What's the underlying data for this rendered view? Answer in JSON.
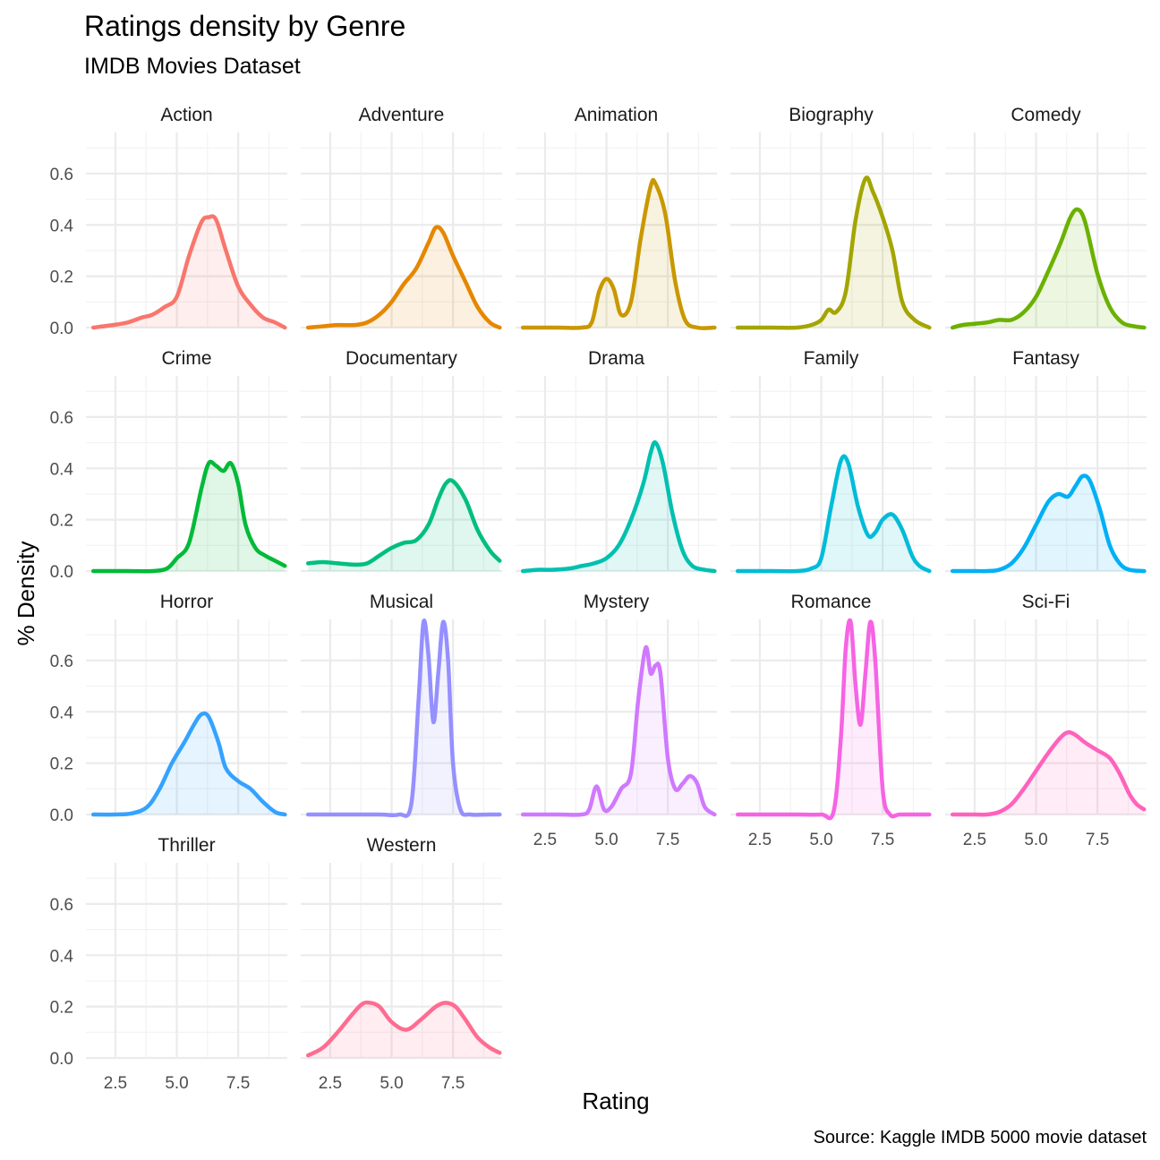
{
  "chart_data": {
    "type": "area",
    "title": "Ratings density by Genre",
    "subtitle": "IMDB Movies Dataset",
    "xlabel": "Rating",
    "ylabel": "% Density",
    "caption": "Source: Kaggle IMDB 5000 movie dataset",
    "xlim": [
      1.3,
      9.5
    ],
    "ylim": [
      0,
      0.76
    ],
    "x_ticks": [
      2.5,
      5.0,
      7.5
    ],
    "x_tick_labels": [
      "2.5",
      "5.0",
      "7.5"
    ],
    "y_ticks": [
      0.0,
      0.2,
      0.4,
      0.6
    ],
    "y_tick_labels": [
      "0.0",
      "0.2",
      "0.4",
      "0.6"
    ],
    "grid": true,
    "legend": "none",
    "facets": [
      {
        "name": "Action",
        "color": "#F8766D",
        "x": [
          1.6,
          2.4,
          3.0,
          3.6,
          4.0,
          4.5,
          5.0,
          5.5,
          6.0,
          6.3,
          6.6,
          7.0,
          7.5,
          8.0,
          8.5,
          9.0,
          9.4
        ],
        "y": [
          0.0,
          0.01,
          0.02,
          0.04,
          0.05,
          0.08,
          0.12,
          0.28,
          0.41,
          0.43,
          0.42,
          0.3,
          0.16,
          0.09,
          0.04,
          0.02,
          0.0
        ]
      },
      {
        "name": "Adventure",
        "color": "#E58700",
        "x": [
          1.6,
          2.2,
          2.8,
          3.5,
          4.0,
          4.5,
          5.0,
          5.5,
          6.0,
          6.5,
          6.8,
          7.1,
          7.5,
          8.0,
          8.5,
          9.0,
          9.4
        ],
        "y": [
          0.0,
          0.005,
          0.01,
          0.01,
          0.02,
          0.05,
          0.1,
          0.17,
          0.23,
          0.33,
          0.39,
          0.37,
          0.28,
          0.18,
          0.08,
          0.02,
          0.0
        ]
      },
      {
        "name": "Animation",
        "color": "#C99800",
        "x": [
          1.6,
          3.0,
          4.0,
          4.4,
          4.7,
          5.0,
          5.3,
          5.6,
          6.0,
          6.4,
          6.8,
          7.0,
          7.4,
          7.8,
          8.2,
          8.7,
          9.4
        ],
        "y": [
          0.0,
          0.0,
          0.0,
          0.02,
          0.14,
          0.19,
          0.15,
          0.05,
          0.1,
          0.35,
          0.55,
          0.56,
          0.44,
          0.18,
          0.03,
          0.0,
          0.0
        ]
      },
      {
        "name": "Biography",
        "color": "#A3A500",
        "x": [
          1.6,
          3.0,
          4.0,
          4.6,
          5.0,
          5.3,
          5.6,
          6.0,
          6.4,
          6.8,
          7.1,
          7.5,
          7.9,
          8.3,
          8.8,
          9.4
        ],
        "y": [
          0.0,
          0.0,
          0.0,
          0.01,
          0.03,
          0.07,
          0.06,
          0.14,
          0.42,
          0.58,
          0.53,
          0.43,
          0.3,
          0.1,
          0.03,
          0.0
        ]
      },
      {
        "name": "Comedy",
        "color": "#6BB100",
        "x": [
          1.6,
          2.0,
          2.5,
          3.0,
          3.5,
          4.0,
          4.5,
          5.0,
          5.5,
          6.0,
          6.4,
          6.7,
          7.0,
          7.5,
          8.0,
          8.5,
          9.0,
          9.4
        ],
        "y": [
          0.0,
          0.01,
          0.015,
          0.02,
          0.03,
          0.03,
          0.06,
          0.12,
          0.22,
          0.33,
          0.43,
          0.46,
          0.41,
          0.21,
          0.08,
          0.02,
          0.005,
          0.0
        ]
      },
      {
        "name": "Crime",
        "color": "#00BA38",
        "x": [
          1.6,
          3.0,
          4.0,
          4.6,
          5.0,
          5.5,
          6.0,
          6.3,
          6.6,
          6.9,
          7.2,
          7.5,
          7.8,
          8.2,
          8.6,
          9.0,
          9.4
        ],
        "y": [
          0.0,
          0.0,
          0.0,
          0.01,
          0.05,
          0.11,
          0.32,
          0.42,
          0.41,
          0.39,
          0.42,
          0.34,
          0.18,
          0.09,
          0.06,
          0.04,
          0.02
        ]
      },
      {
        "name": "Documentary",
        "color": "#00BF7D",
        "x": [
          1.6,
          2.2,
          2.8,
          3.5,
          4.0,
          4.5,
          5.0,
          5.5,
          6.0,
          6.5,
          6.9,
          7.2,
          7.5,
          8.0,
          8.5,
          9.0,
          9.4
        ],
        "y": [
          0.03,
          0.035,
          0.03,
          0.025,
          0.03,
          0.06,
          0.09,
          0.11,
          0.12,
          0.18,
          0.28,
          0.34,
          0.35,
          0.28,
          0.16,
          0.08,
          0.04
        ]
      },
      {
        "name": "Drama",
        "color": "#00C0AF",
        "x": [
          1.6,
          2.2,
          2.8,
          3.5,
          4.0,
          4.5,
          5.0,
          5.5,
          6.0,
          6.5,
          6.8,
          7.0,
          7.3,
          7.7,
          8.1,
          8.5,
          9.0,
          9.4
        ],
        "y": [
          0.0,
          0.005,
          0.005,
          0.01,
          0.02,
          0.03,
          0.05,
          0.1,
          0.2,
          0.34,
          0.46,
          0.5,
          0.42,
          0.22,
          0.08,
          0.02,
          0.005,
          0.0
        ]
      },
      {
        "name": "Family",
        "color": "#00BCD8",
        "x": [
          1.6,
          3.0,
          4.0,
          4.6,
          5.0,
          5.4,
          5.8,
          6.1,
          6.5,
          6.9,
          7.2,
          7.5,
          7.9,
          8.3,
          8.7,
          9.0,
          9.4
        ],
        "y": [
          0.0,
          0.0,
          0.0,
          0.01,
          0.05,
          0.25,
          0.43,
          0.42,
          0.25,
          0.14,
          0.15,
          0.2,
          0.22,
          0.16,
          0.06,
          0.02,
          0.0
        ]
      },
      {
        "name": "Fantasy",
        "color": "#00B0F6",
        "x": [
          1.6,
          2.5,
          3.0,
          3.5,
          4.0,
          4.5,
          5.0,
          5.5,
          5.9,
          6.3,
          6.6,
          6.9,
          7.2,
          7.6,
          8.0,
          8.4,
          8.8,
          9.4
        ],
        "y": [
          0.0,
          0.0,
          0.0,
          0.005,
          0.03,
          0.09,
          0.18,
          0.27,
          0.3,
          0.29,
          0.33,
          0.37,
          0.35,
          0.24,
          0.1,
          0.03,
          0.005,
          0.0
        ]
      },
      {
        "name": "Horror",
        "color": "#35A2FF",
        "x": [
          1.6,
          2.5,
          3.2,
          3.8,
          4.3,
          4.8,
          5.3,
          5.7,
          6.0,
          6.3,
          6.7,
          7.0,
          7.5,
          8.0,
          8.5,
          9.0,
          9.4
        ],
        "y": [
          0.0,
          0.0,
          0.005,
          0.03,
          0.1,
          0.2,
          0.28,
          0.35,
          0.39,
          0.38,
          0.28,
          0.18,
          0.13,
          0.1,
          0.05,
          0.01,
          0.0
        ]
      },
      {
        "name": "Musical",
        "color": "#9590FF",
        "x": [
          1.6,
          3.0,
          4.5,
          5.3,
          5.8,
          6.1,
          6.3,
          6.5,
          6.7,
          6.9,
          7.1,
          7.3,
          7.5,
          7.8,
          8.2,
          9.0,
          9.4
        ],
        "y": [
          0.0,
          0.0,
          0.0,
          0.0,
          0.04,
          0.45,
          0.75,
          0.62,
          0.36,
          0.55,
          0.75,
          0.6,
          0.2,
          0.02,
          0.0,
          0.0,
          0.0
        ]
      },
      {
        "name": "Mystery",
        "color": "#D078FF",
        "x": [
          1.6,
          3.0,
          4.0,
          4.3,
          4.6,
          4.9,
          5.2,
          5.6,
          6.0,
          6.3,
          6.6,
          6.8,
          7.0,
          7.2,
          7.5,
          7.8,
          8.1,
          8.4,
          8.7,
          9.0,
          9.4
        ],
        "y": [
          0.0,
          0.0,
          0.0,
          0.02,
          0.11,
          0.02,
          0.03,
          0.1,
          0.16,
          0.45,
          0.65,
          0.55,
          0.58,
          0.55,
          0.22,
          0.1,
          0.12,
          0.15,
          0.12,
          0.03,
          0.0
        ]
      },
      {
        "name": "Romance",
        "color": "#F663E3",
        "x": [
          1.6,
          3.0,
          4.0,
          5.0,
          5.5,
          5.8,
          6.0,
          6.2,
          6.4,
          6.6,
          6.8,
          7.0,
          7.2,
          7.5,
          7.8,
          8.2,
          9.0,
          9.4
        ],
        "y": [
          0.0,
          0.0,
          0.0,
          0.0,
          0.01,
          0.3,
          0.65,
          0.75,
          0.5,
          0.35,
          0.55,
          0.75,
          0.6,
          0.1,
          0.0,
          0.0,
          0.0,
          0.0
        ]
      },
      {
        "name": "Sci-Fi",
        "color": "#FF62BC",
        "x": [
          1.6,
          2.5,
          3.0,
          3.5,
          4.0,
          4.5,
          5.0,
          5.5,
          6.0,
          6.3,
          6.6,
          7.0,
          7.5,
          8.0,
          8.4,
          8.8,
          9.1,
          9.4
        ],
        "y": [
          0.0,
          0.0,
          0.0,
          0.01,
          0.04,
          0.1,
          0.17,
          0.24,
          0.3,
          0.32,
          0.31,
          0.28,
          0.25,
          0.22,
          0.16,
          0.08,
          0.04,
          0.02
        ]
      },
      {
        "name": "Thriller",
        "color": "#F8766D",
        "x": [],
        "y": []
      },
      {
        "name": "Western",
        "color": "#FF6C91",
        "x": [
          1.6,
          2.2,
          2.8,
          3.4,
          3.8,
          4.1,
          4.5,
          5.0,
          5.6,
          6.2,
          6.8,
          7.2,
          7.6,
          8.0,
          8.5,
          9.0,
          9.4
        ],
        "y": [
          0.01,
          0.04,
          0.1,
          0.17,
          0.21,
          0.215,
          0.2,
          0.14,
          0.11,
          0.15,
          0.2,
          0.215,
          0.2,
          0.15,
          0.08,
          0.04,
          0.02
        ]
      }
    ]
  }
}
